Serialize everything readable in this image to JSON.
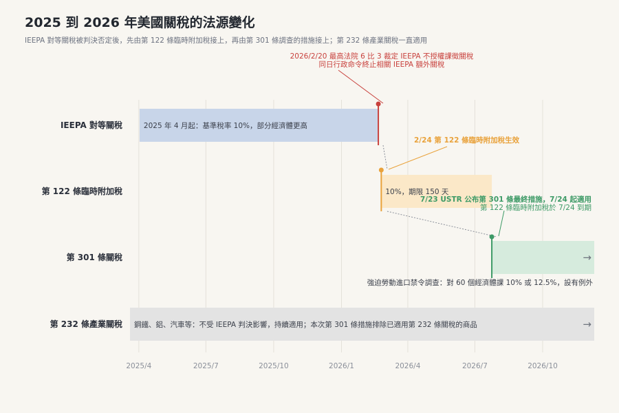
{
  "title": "2025 到 2026 年美國關稅的法源變化",
  "subtitle": "IEEPA 對等關稅被判決否定後，先由第 122 條臨時附加稅接上，再由第 301 條調查的措施接上；第 232 條產業關稅一直適用",
  "chart_data": {
    "type": "timeline",
    "x_axis": {
      "type": "date",
      "range": [
        "2025-03-20",
        "2026-12-10"
      ],
      "ticks": [
        {
          "date": "2025-04-01",
          "label": "2025/4"
        },
        {
          "date": "2025-07-01",
          "label": "2025/7"
        },
        {
          "date": "2025-10-01",
          "label": "2025/10"
        },
        {
          "date": "2026-01-01",
          "label": "2026/1"
        },
        {
          "date": "2026-04-01",
          "label": "2026/4"
        },
        {
          "date": "2026-07-01",
          "label": "2026/7"
        },
        {
          "date": "2026-10-01",
          "label": "2026/10"
        }
      ],
      "grid": true
    },
    "rows": [
      {
        "id": "ieepa",
        "label": "IEEPA 對等關稅"
      },
      {
        "id": "s122",
        "label": "第 122 條臨時附加稅"
      },
      {
        "id": "s301",
        "label": "第 301 條關稅"
      },
      {
        "id": "s232",
        "label": "第 232 條產業關稅"
      }
    ],
    "bars": [
      {
        "row": "ieepa",
        "start": "2025-04-02",
        "end": "2026-02-20",
        "color": "#c8d5e9",
        "text": "2025 年 4 月起：基準稅率 10%，部分經濟體更高",
        "text_pos": "inside",
        "continues": false
      },
      {
        "row": "s122",
        "start": "2026-02-24",
        "end": "2026-07-24",
        "color": "#fbe8c8",
        "text": "10%，期限 150 天",
        "text_pos": "inside",
        "continues": false
      },
      {
        "row": "s301",
        "start": "2026-07-24",
        "end": "2026-12-10",
        "color": "#d6ebdd",
        "text": "強迫勞動進口禁令調查：對 60 個經濟體課 10% 或 12.5%，設有例外",
        "text_pos": "below",
        "continues": true
      },
      {
        "row": "s232",
        "start": "2025-03-20",
        "end": "2026-12-10",
        "color": "#e3e3e3",
        "text": "鋼鐵、鋁、汽車等：不受 IEEPA 判決影響，持續適用；本次第 301 條措施排除已適用第 232 條關稅的商品",
        "text_pos": "inside",
        "continues": true
      }
    ],
    "events": [
      {
        "date": "2026-02-20",
        "row": "ieepa",
        "color": "#c8413d",
        "lines": [
          "2026/2/20 最高法院 6 比 3 裁定 IEEPA 不授權課徵關稅",
          "同日行政命令終止相關 IEEPA 額外關稅"
        ],
        "label_align": "center"
      },
      {
        "date": "2026-02-24",
        "row": "s122",
        "color": "#e9a23b",
        "lines": [
          "2/24 第 122 條臨時附加稅生效"
        ],
        "label_align": "start"
      },
      {
        "date": "2026-07-24",
        "row": "s301",
        "color": "#3d9a66",
        "lines": [
          "7/23 USTR 公布第 301 條最終措施，7/24 起適用",
          "第 122 條臨時附加稅於 7/24 到期"
        ],
        "label_align": "end"
      }
    ],
    "continuation_symbol": "→"
  }
}
